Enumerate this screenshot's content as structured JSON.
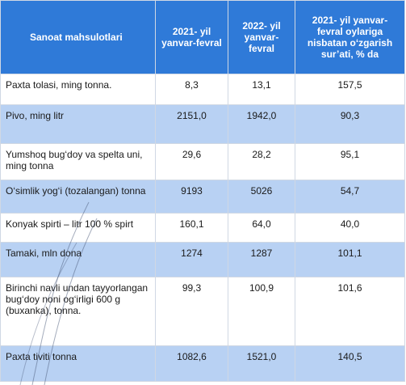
{
  "table": {
    "header": [
      "Sanoat mahsulotlari",
      "2021- yil yanvar-fevral",
      "2022- yil yanvar-fevral",
      "2021- yil yanvar-fevral oylariga nisbatan o‘zgarish sur’ati, % da"
    ],
    "rows": [
      [
        "Paxta tolasi, ming tonna.",
        "8,3",
        "13,1",
        "157,5"
      ],
      [
        "Pivo, ming litr",
        "2151,0",
        "1942,0",
        "90,3"
      ],
      [
        "Yumshoq bug‘doy va spelta uni, ming tonna",
        "29,6",
        "28,2",
        "95,1"
      ],
      [
        "O‘simlik yog‘i (tozalangan) tonna",
        "9193",
        "5026",
        "54,7"
      ],
      [
        "Konyak spirti –  litr 100 % spirt",
        "160,1",
        "64,0",
        "40,0"
      ],
      [
        "Tamaki, mln dona",
        "1274",
        "1287",
        "101,1"
      ],
      [
        "Birinchi navli undan tayyorlangan bug‘doy noni og‘irligi 600 g (buxanka), tonna.",
        "99,3",
        "100,9",
        "101,6"
      ],
      [
        "Paxta tiviti tonna",
        "1082,6",
        "1521,0",
        "140,5"
      ]
    ]
  }
}
